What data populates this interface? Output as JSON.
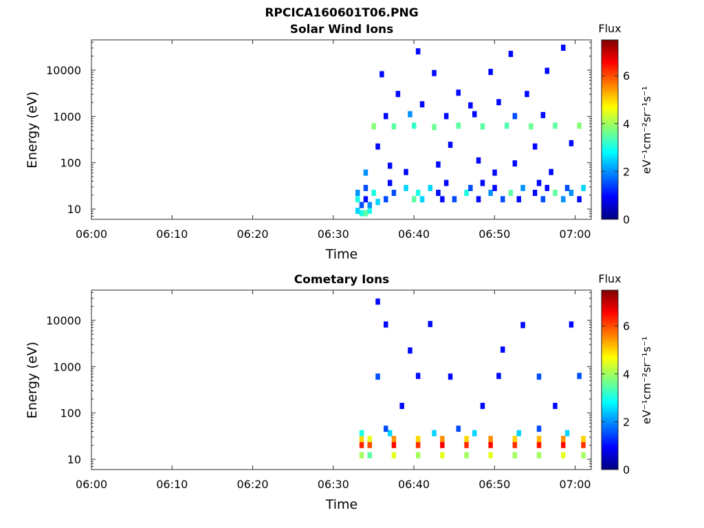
{
  "figure": {
    "title": "RPCICA160601T06.PNG"
  },
  "chart_data": [
    {
      "type": "heatmap",
      "title": "Solar Wind Ions",
      "xlabel": "Time",
      "ylabel": "Energy (eV)",
      "x_ticks": [
        "06:00",
        "06:10",
        "06:20",
        "06:30",
        "06:40",
        "06:50",
        "07:00"
      ],
      "y_ticks": [
        "10",
        "100",
        "1000",
        "10000"
      ],
      "y_scale": "log",
      "ylim": [
        6,
        45000
      ],
      "colorbar": {
        "title": "Flux",
        "unit": "eV⁻¹cm⁻²sr⁻¹s⁻¹",
        "ticks": [
          "0",
          "2",
          "4",
          "6"
        ],
        "range": [
          0,
          7.5
        ]
      },
      "data_start": "06:33",
      "cells": [
        [
          "06:33.5",
          8,
          3
        ],
        [
          "06:34.0",
          8,
          3.5
        ],
        [
          "06:33.0",
          9,
          2.5
        ],
        [
          "06:34.5",
          9,
          3
        ],
        [
          "06:33.5",
          12,
          1.5
        ],
        [
          "06:34.5",
          12,
          2
        ],
        [
          "06:35.5",
          14,
          2.5
        ],
        [
          "06:33.0",
          16,
          3
        ],
        [
          "06:34.0",
          16,
          1
        ],
        [
          "06:36.5",
          16,
          1.5
        ],
        [
          "06:40.0",
          16,
          3.5
        ],
        [
          "06:41.0",
          16,
          2.5
        ],
        [
          "06:43.5",
          16,
          1
        ],
        [
          "06:45.0",
          16,
          1.5
        ],
        [
          "06:48.0",
          16,
          1
        ],
        [
          "06:51.0",
          16,
          1.5
        ],
        [
          "06:53.0",
          16,
          1
        ],
        [
          "06:56.0",
          16,
          1.5
        ],
        [
          "06:58.5",
          16,
          2
        ],
        [
          "07:00.5",
          16,
          1
        ],
        [
          "06:33.0",
          22,
          2
        ],
        [
          "06:35.0",
          22,
          3
        ],
        [
          "06:37.5",
          22,
          1.5
        ],
        [
          "06:40.5",
          22,
          3
        ],
        [
          "06:43.0",
          22,
          1
        ],
        [
          "06:46.5",
          22,
          3
        ],
        [
          "06:49.5",
          22,
          2
        ],
        [
          "06:52.0",
          22,
          3.5
        ],
        [
          "06:55.0",
          22,
          1
        ],
        [
          "06:57.5",
          22,
          3.5
        ],
        [
          "06:59.5",
          22,
          2
        ],
        [
          "06:34.0",
          28,
          1.5
        ],
        [
          "06:39.0",
          28,
          2.5
        ],
        [
          "06:42.0",
          28,
          2.5
        ],
        [
          "06:47.0",
          28,
          1.5
        ],
        [
          "06:50.0",
          28,
          1
        ],
        [
          "06:53.5",
          28,
          2
        ],
        [
          "06:56.5",
          28,
          1
        ],
        [
          "06:59.0",
          28,
          1.5
        ],
        [
          "07:01.0",
          28,
          2.5
        ],
        [
          "06:37.0",
          36,
          1
        ],
        [
          "06:44.0",
          36,
          1
        ],
        [
          "06:48.5",
          36,
          1
        ],
        [
          "06:55.5",
          36,
          1
        ],
        [
          "06:34.0",
          60,
          2
        ],
        [
          "06:39.0",
          62,
          1
        ],
        [
          "06:50.0",
          60,
          1
        ],
        [
          "06:57.0",
          62,
          1
        ],
        [
          "06:37.0",
          85,
          1
        ],
        [
          "06:43.0",
          90,
          1
        ],
        [
          "06:52.5",
          95,
          1
        ],
        [
          "06:48.0",
          110,
          1
        ],
        [
          "06:35.5",
          220,
          1
        ],
        [
          "06:44.5",
          240,
          1
        ],
        [
          "06:55.0",
          220,
          1
        ],
        [
          "06:59.5",
          260,
          1
        ],
        [
          "06:35.0",
          600,
          3.8
        ],
        [
          "06:37.5",
          600,
          3.5
        ],
        [
          "06:40.0",
          620,
          3.2
        ],
        [
          "06:42.5",
          580,
          3.6
        ],
        [
          "06:45.5",
          620,
          3.5
        ],
        [
          "06:48.5",
          600,
          3.5
        ],
        [
          "06:51.5",
          620,
          3.4
        ],
        [
          "06:54.5",
          600,
          3.6
        ],
        [
          "06:57.5",
          620,
          3.5
        ],
        [
          "07:00.5",
          620,
          3.8
        ],
        [
          "06:36.5",
          1000,
          1
        ],
        [
          "06:39.5",
          1100,
          2
        ],
        [
          "06:44.0",
          1000,
          1
        ],
        [
          "06:47.5",
          1100,
          1
        ],
        [
          "06:52.5",
          1000,
          1.5
        ],
        [
          "06:56.0",
          1050,
          1
        ],
        [
          "06:41.0",
          1800,
          1
        ],
        [
          "06:47.0",
          1700,
          1
        ],
        [
          "06:50.5",
          2000,
          1
        ],
        [
          "06:38.0",
          3000,
          1
        ],
        [
          "06:45.5",
          3200,
          1
        ],
        [
          "06:54.0",
          3000,
          1
        ],
        [
          "06:36.0",
          8000,
          1
        ],
        [
          "06:42.5",
          8500,
          1
        ],
        [
          "06:49.5",
          9000,
          1
        ],
        [
          "06:56.5",
          9500,
          1
        ],
        [
          "06:40.5",
          25000,
          1
        ],
        [
          "06:52.0",
          22000,
          1
        ],
        [
          "06:58.5",
          30000,
          1
        ]
      ]
    },
    {
      "type": "heatmap",
      "title": "Cometary Ions",
      "xlabel": "Time",
      "ylabel": "Energy (eV)",
      "x_ticks": [
        "06:00",
        "06:10",
        "06:20",
        "06:30",
        "06:40",
        "06:50",
        "07:00"
      ],
      "y_ticks": [
        "10",
        "100",
        "1000",
        "10000"
      ],
      "y_scale": "log",
      "ylim": [
        6,
        45000
      ],
      "colorbar": {
        "title": "Flux",
        "unit": "eV⁻¹cm⁻²sr⁻¹s⁻¹",
        "ticks": [
          "0",
          "2",
          "4",
          "6"
        ],
        "range": [
          0,
          7.5
        ]
      },
      "data_start": "06:33",
      "cells": [
        [
          "06:33.5",
          12,
          4
        ],
        [
          "06:34.5",
          12,
          3.5
        ],
        [
          "06:37.5",
          12,
          4.5
        ],
        [
          "06:40.5",
          12,
          4
        ],
        [
          "06:43.5",
          12,
          4.5
        ],
        [
          "06:46.5",
          12,
          4
        ],
        [
          "06:49.5",
          12,
          4.5
        ],
        [
          "06:52.5",
          12,
          4
        ],
        [
          "06:55.5",
          12,
          4
        ],
        [
          "06:58.5",
          12,
          4.5
        ],
        [
          "07:01.0",
          12,
          4
        ],
        [
          "06:33.5",
          20,
          6.3
        ],
        [
          "06:34.5",
          20,
          6
        ],
        [
          "06:37.5",
          20,
          6.5
        ],
        [
          "06:40.5",
          20,
          6.2
        ],
        [
          "06:43.5",
          20,
          6.6
        ],
        [
          "06:46.5",
          20,
          6.3
        ],
        [
          "06:49.5",
          20,
          6.5
        ],
        [
          "06:52.5",
          20,
          6.2
        ],
        [
          "06:55.5",
          20,
          6.4
        ],
        [
          "06:58.5",
          20,
          6.5
        ],
        [
          "07:01.0",
          20,
          6.2
        ],
        [
          "06:33.5",
          27,
          5
        ],
        [
          "06:34.5",
          27,
          4.5
        ],
        [
          "06:37.5",
          27,
          5.5
        ],
        [
          "06:40.5",
          27,
          5
        ],
        [
          "06:43.5",
          27,
          5.5
        ],
        [
          "06:46.5",
          27,
          5
        ],
        [
          "06:49.5",
          27,
          5.5
        ],
        [
          "06:52.5",
          27,
          5
        ],
        [
          "06:55.5",
          27,
          5.2
        ],
        [
          "06:58.5",
          27,
          5.5
        ],
        [
          "07:01.0",
          27,
          5
        ],
        [
          "06:33.5",
          36,
          3
        ],
        [
          "06:37.0",
          36,
          2.5
        ],
        [
          "06:42.5",
          36,
          2.5
        ],
        [
          "06:47.5",
          36,
          2.5
        ],
        [
          "06:53.0",
          36,
          2.5
        ],
        [
          "06:59.0",
          36,
          2.5
        ],
        [
          "06:36.5",
          45,
          1.5
        ],
        [
          "06:45.5",
          45,
          1.5
        ],
        [
          "06:55.5",
          45,
          1.5
        ],
        [
          "06:38.5",
          140,
          1
        ],
        [
          "06:48.5",
          140,
          1
        ],
        [
          "06:57.5",
          140,
          1
        ],
        [
          "06:35.5",
          600,
          1.5
        ],
        [
          "06:40.5",
          620,
          1
        ],
        [
          "06:44.5",
          600,
          1
        ],
        [
          "06:50.5",
          620,
          1
        ],
        [
          "06:55.5",
          600,
          1.5
        ],
        [
          "07:00.5",
          620,
          1.5
        ],
        [
          "06:39.5",
          2200,
          1
        ],
        [
          "06:51.0",
          2300,
          1
        ],
        [
          "06:36.5",
          8000,
          1
        ],
        [
          "06:42.0",
          8200,
          1
        ],
        [
          "06:53.5",
          7800,
          1
        ],
        [
          "06:59.5",
          8000,
          1
        ],
        [
          "06:35.5",
          25000,
          1
        ]
      ]
    }
  ]
}
